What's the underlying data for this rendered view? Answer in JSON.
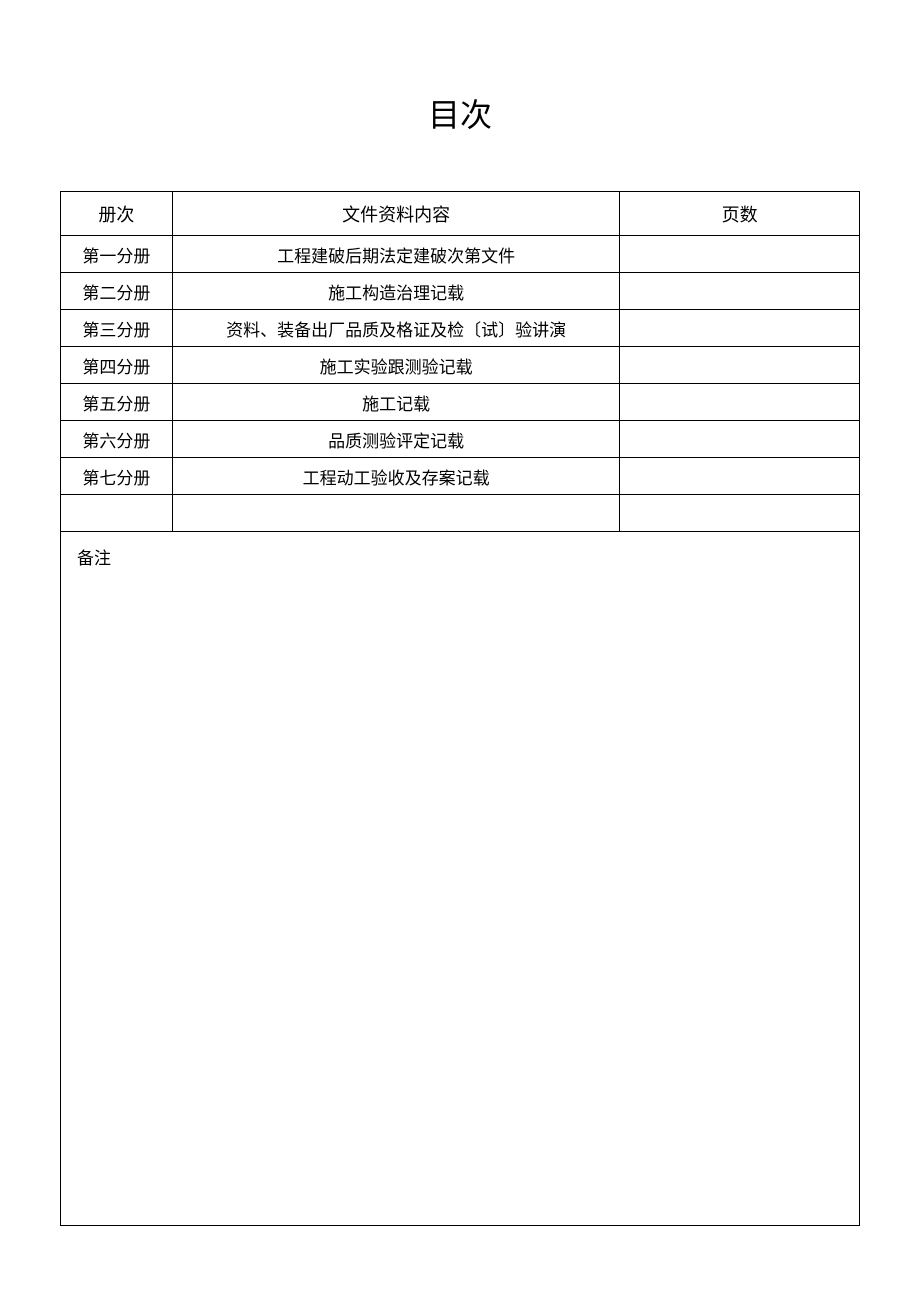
{
  "page": {
    "title": "目次",
    "background_color": "#ffffff",
    "text_color": "#000000",
    "border_color": "#000000",
    "font_family": "SimSun",
    "title_fontsize": 32,
    "header_fontsize": 18,
    "cell_fontsize": 17
  },
  "table": {
    "columns": {
      "volume": {
        "label": "册次",
        "width_pct": 14
      },
      "content": {
        "label": "文件资料内容",
        "width_pct": 56
      },
      "pages": {
        "label": "页数",
        "width_pct": 30
      }
    },
    "rows": [
      {
        "volume": "第一分册",
        "content": "工程建破后期法定建破次第文件",
        "pages": ""
      },
      {
        "volume": "第二分册",
        "content": "施工构造治理记载",
        "pages": ""
      },
      {
        "volume": "第三分册",
        "content": "资料、装备出厂品质及格证及检〔试〕验讲演",
        "pages": ""
      },
      {
        "volume": "第四分册",
        "content": "施工实验跟测验记载",
        "pages": ""
      },
      {
        "volume": "第五分册",
        "content": "施工记载",
        "pages": ""
      },
      {
        "volume": "第六分册",
        "content": "品质测验评定记载",
        "pages": ""
      },
      {
        "volume": "第七分册",
        "content": "工程动工验收及存案记载",
        "pages": ""
      }
    ],
    "empty_row": {
      "volume": "",
      "content": "",
      "pages": ""
    },
    "notes": {
      "label": "备注",
      "value": ""
    },
    "header_row_height": 44,
    "body_row_height": 37,
    "notes_row_height": 694
  }
}
